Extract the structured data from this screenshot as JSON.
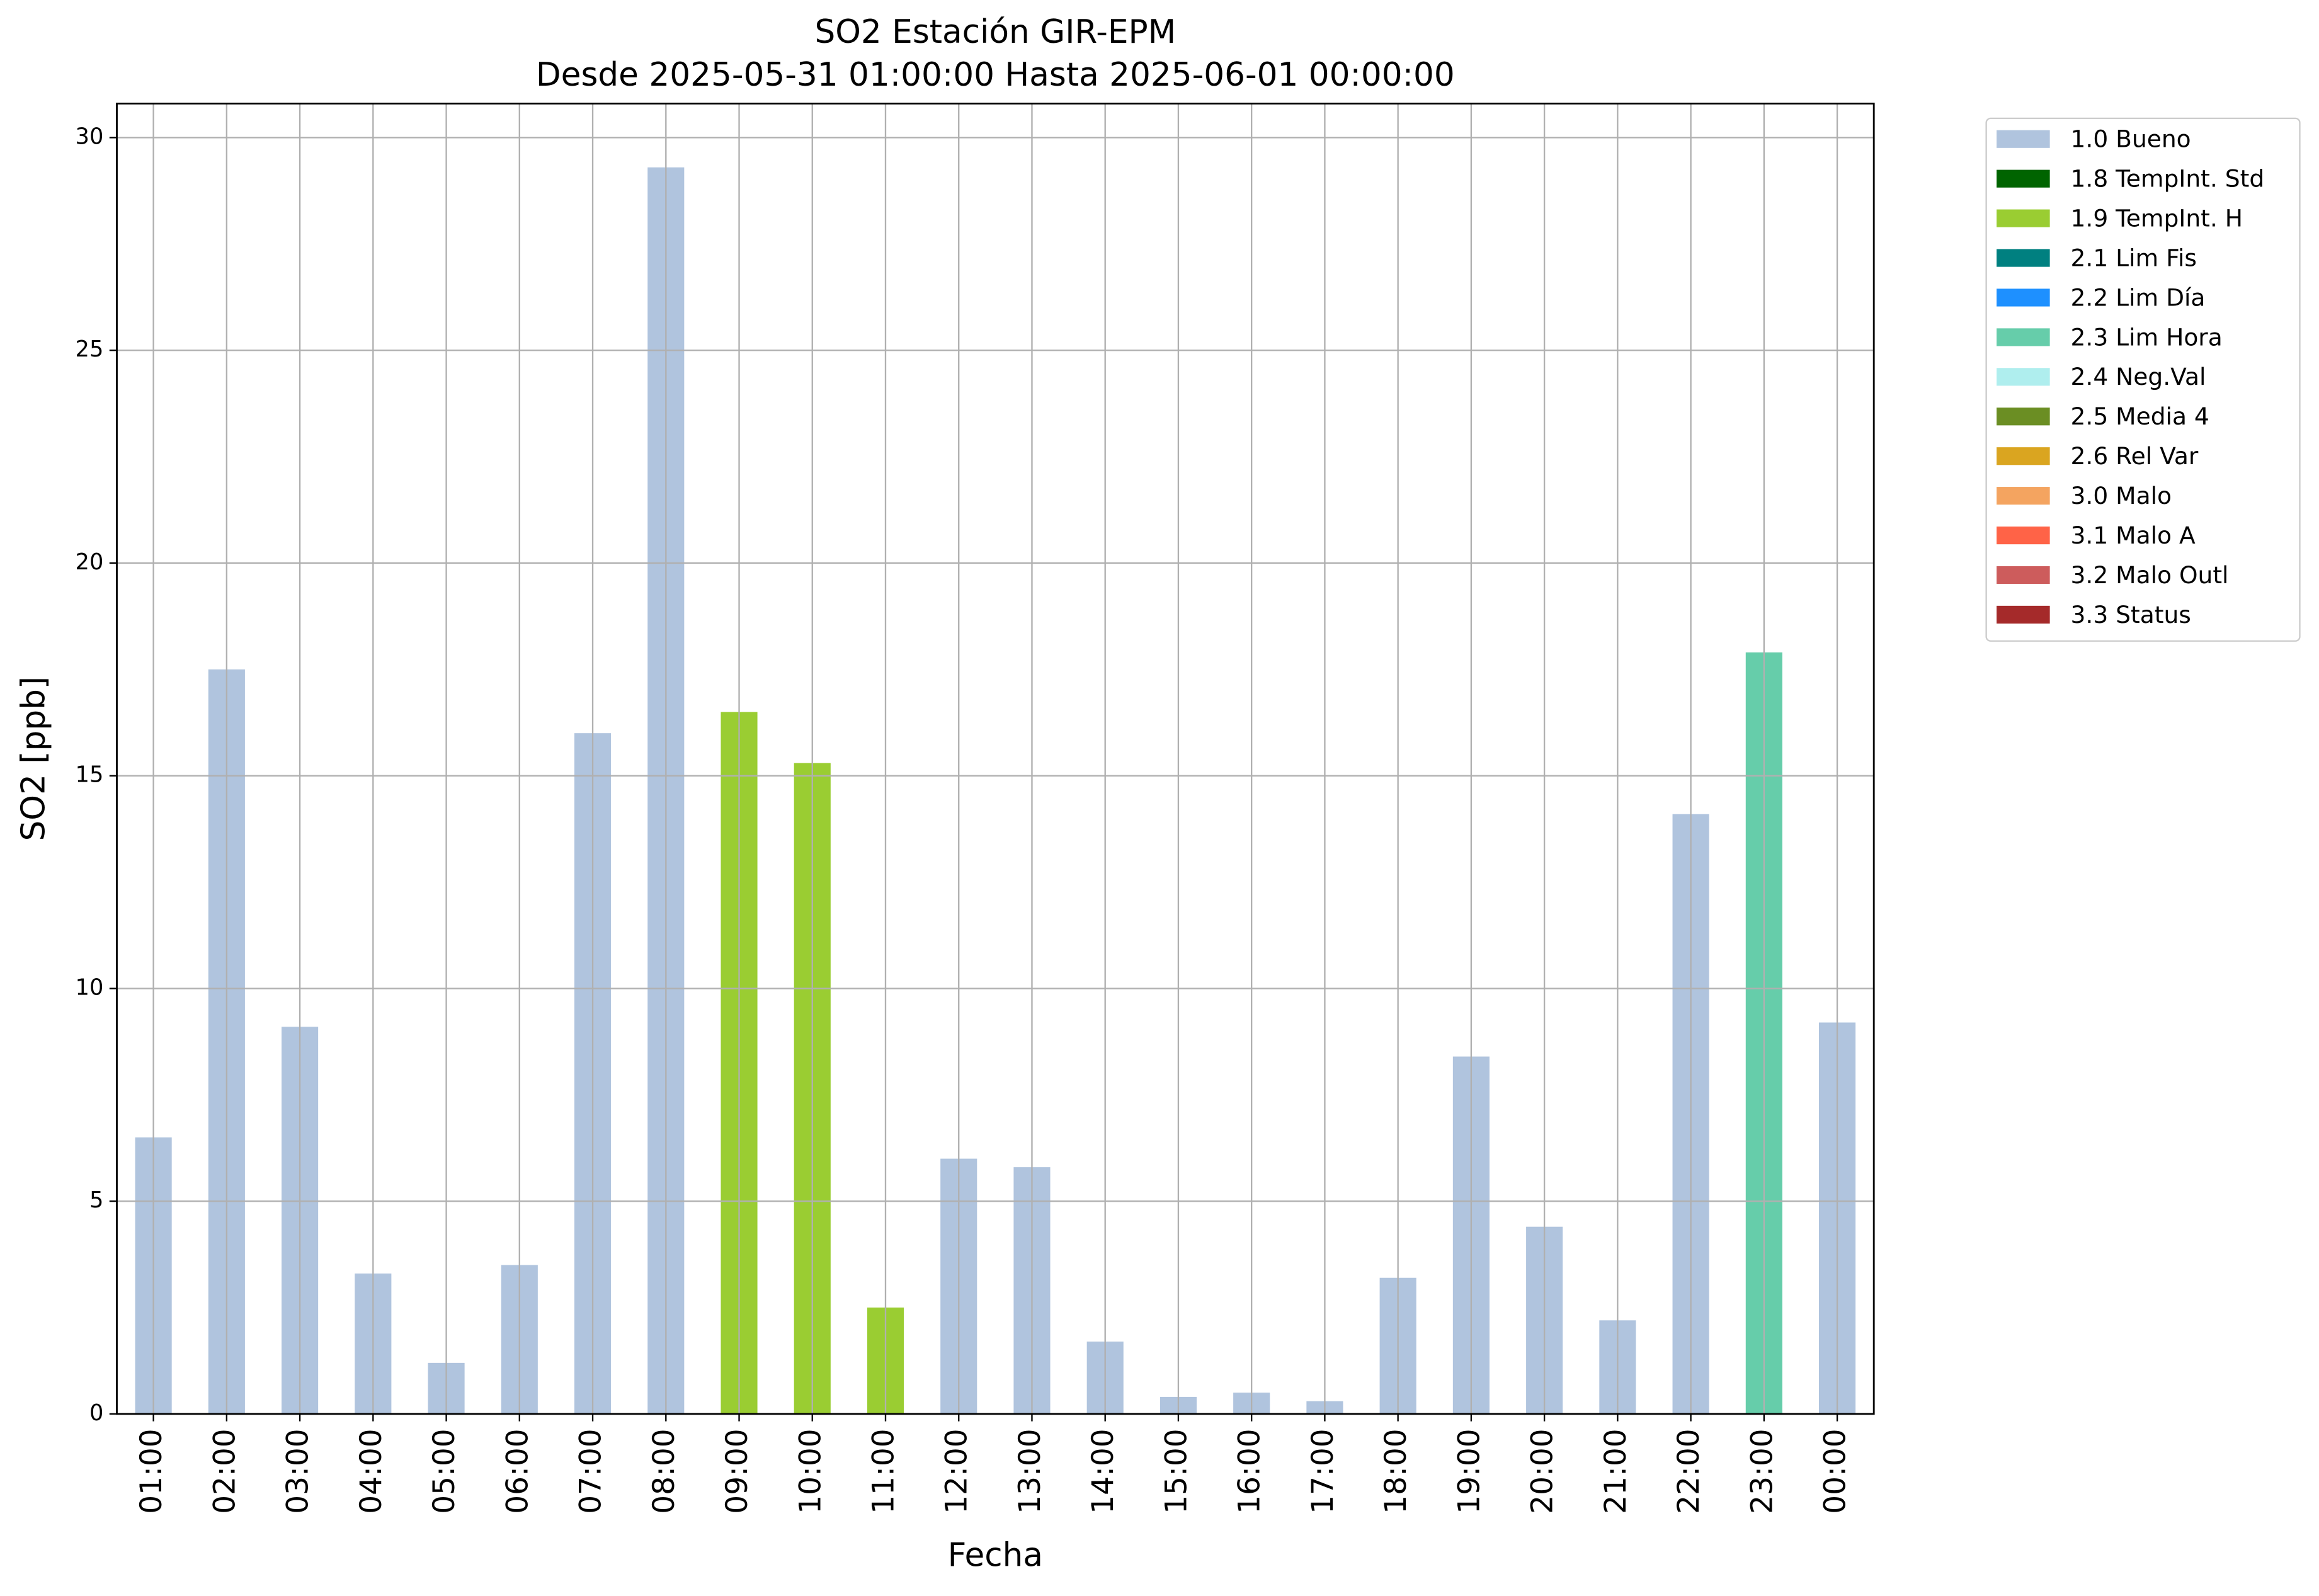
{
  "chart_data": {
    "type": "stacked-bar",
    "title": "SO2 Estación GIR-EPM",
    "subtitle": "Desde 2025-05-31 01:00:00 Hasta 2025-06-01 00:00:00",
    "x_label": "Fecha",
    "y_label": "SO2 [ppb]",
    "categories": [
      "01:00",
      "02:00",
      "03:00",
      "04:00",
      "05:00",
      "06:00",
      "07:00",
      "08:00",
      "09:00",
      "10:00",
      "11:00",
      "12:00",
      "13:00",
      "14:00",
      "15:00",
      "16:00",
      "17:00",
      "18:00",
      "19:00",
      "20:00",
      "21:00",
      "22:00",
      "23:00",
      "00:00"
    ],
    "series": [
      {
        "name": "1.0 Bueno",
        "color": "#b0c4de",
        "values": [
          6.5,
          17.5,
          9.1,
          3.3,
          1.2,
          3.5,
          16.0,
          29.3,
          null,
          null,
          null,
          6.0,
          5.8,
          1.7,
          0.4,
          0.5,
          0.3,
          3.2,
          8.4,
          4.4,
          2.2,
          14.1,
          null,
          9.2
        ]
      },
      {
        "name": "1.8 TempInt. Std",
        "color": "#006400",
        "values": [
          null,
          null,
          null,
          null,
          null,
          null,
          null,
          null,
          null,
          null,
          null,
          null,
          null,
          null,
          null,
          null,
          null,
          null,
          null,
          null,
          null,
          null,
          null,
          null
        ]
      },
      {
        "name": "1.9 TempInt. H",
        "color": "#9acd32",
        "values": [
          null,
          null,
          null,
          null,
          null,
          null,
          null,
          null,
          16.5,
          15.3,
          2.5,
          null,
          null,
          null,
          null,
          null,
          null,
          null,
          null,
          null,
          null,
          null,
          null,
          null
        ]
      },
      {
        "name": "2.1 Lim Fis",
        "color": "#008080",
        "values": [
          null,
          null,
          null,
          null,
          null,
          null,
          null,
          null,
          null,
          null,
          null,
          null,
          null,
          null,
          null,
          null,
          null,
          null,
          null,
          null,
          null,
          null,
          null,
          null
        ]
      },
      {
        "name": "2.2 Lim Día",
        "color": "#1e90ff",
        "values": [
          null,
          null,
          null,
          null,
          null,
          null,
          null,
          null,
          null,
          null,
          null,
          null,
          null,
          null,
          null,
          null,
          null,
          null,
          null,
          null,
          null,
          null,
          null,
          null
        ]
      },
      {
        "name": "2.3 Lim Hora",
        "color": "#66cdaa",
        "values": [
          null,
          null,
          null,
          null,
          null,
          null,
          null,
          null,
          null,
          null,
          null,
          null,
          null,
          null,
          null,
          null,
          null,
          null,
          null,
          null,
          null,
          null,
          17.9,
          null
        ]
      },
      {
        "name": "2.4 Neg.Val",
        "color": "#afeeee",
        "values": [
          null,
          null,
          null,
          null,
          null,
          null,
          null,
          null,
          null,
          null,
          null,
          null,
          null,
          null,
          null,
          null,
          null,
          null,
          null,
          null,
          null,
          null,
          null,
          null
        ]
      },
      {
        "name": "2.5 Media 4",
        "color": "#6b8e23",
        "values": [
          null,
          null,
          null,
          null,
          null,
          null,
          null,
          null,
          null,
          null,
          null,
          null,
          null,
          null,
          null,
          null,
          null,
          null,
          null,
          null,
          null,
          null,
          null,
          null
        ]
      },
      {
        "name": "2.6 Rel Var",
        "color": "#daa520",
        "values": [
          null,
          null,
          null,
          null,
          null,
          null,
          null,
          null,
          null,
          null,
          null,
          null,
          null,
          null,
          null,
          null,
          null,
          null,
          null,
          null,
          null,
          null,
          null,
          null
        ]
      },
      {
        "name": "3.0 Malo",
        "color": "#f4a460",
        "values": [
          null,
          null,
          null,
          null,
          null,
          null,
          null,
          null,
          null,
          null,
          null,
          null,
          null,
          null,
          null,
          null,
          null,
          null,
          null,
          null,
          null,
          null,
          null,
          null
        ]
      },
      {
        "name": "3.1 Malo A",
        "color": "#ff6347",
        "values": [
          null,
          null,
          null,
          null,
          null,
          null,
          null,
          null,
          null,
          null,
          null,
          null,
          null,
          null,
          null,
          null,
          null,
          null,
          null,
          null,
          null,
          null,
          null,
          null
        ]
      },
      {
        "name": "3.2 Malo Outl",
        "color": "#cd5c5c",
        "values": [
          null,
          null,
          null,
          null,
          null,
          null,
          null,
          null,
          null,
          null,
          null,
          null,
          null,
          null,
          null,
          null,
          null,
          null,
          null,
          null,
          null,
          null,
          null,
          null
        ]
      },
      {
        "name": "3.3 Status",
        "color": "#a52a2a",
        "values": [
          null,
          null,
          null,
          null,
          null,
          null,
          null,
          null,
          null,
          null,
          null,
          null,
          null,
          null,
          null,
          null,
          null,
          null,
          null,
          null,
          null,
          null,
          null,
          null
        ]
      }
    ],
    "ylim": [
      0,
      30.8
    ],
    "yticks": [
      0,
      5,
      10,
      15,
      20,
      25,
      30
    ],
    "grid": true,
    "legend": "outside-upper-right"
  }
}
